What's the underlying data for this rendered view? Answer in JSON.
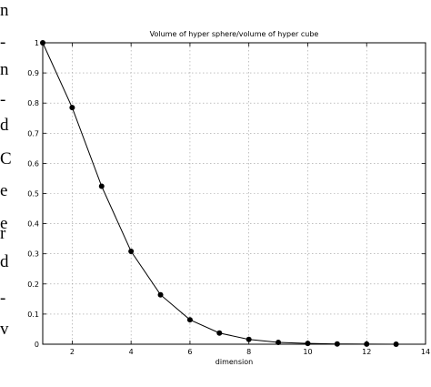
{
  "cropped_text": [
    "n",
    "-",
    "n",
    "-",
    "d",
    "C",
    "e",
    "e",
    "r",
    "d",
    "-",
    "v"
  ],
  "chart_data": {
    "type": "line",
    "title": "Volume of hyper sphere/volume of hyper cube",
    "xlabel": "dimension",
    "ylabel": "",
    "xlim": [
      1,
      14
    ],
    "ylim": [
      0,
      1
    ],
    "xticks": [
      2,
      4,
      6,
      8,
      10,
      12,
      14
    ],
    "yticks": [
      0,
      0.1,
      0.2,
      0.3,
      0.4,
      0.5,
      0.6,
      0.7,
      0.8,
      0.9,
      1
    ],
    "grid": true,
    "marker": "filled-circle",
    "series": [
      {
        "x": [
          1,
          2,
          3,
          4,
          5,
          6,
          7,
          8,
          9,
          10,
          11,
          12,
          13
        ],
        "values": [
          1.0,
          0.785,
          0.524,
          0.308,
          0.164,
          0.081,
          0.037,
          0.016,
          0.006,
          0.0025,
          0.0009,
          0.0003,
          0.0001
        ]
      }
    ]
  }
}
